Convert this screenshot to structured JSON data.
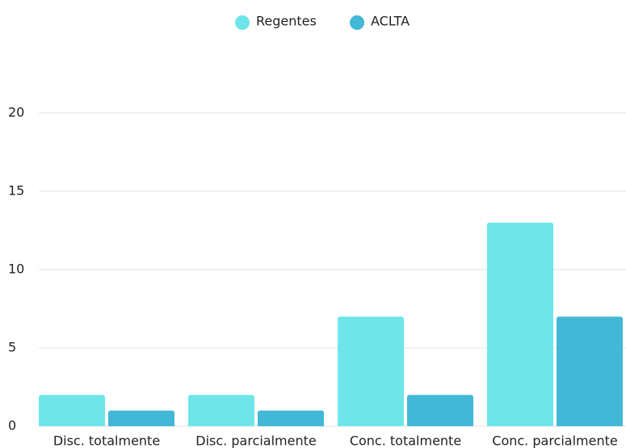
{
  "chart_data": {
    "type": "bar",
    "categories": [
      "Disc. totalmente",
      "Disc. parcialmente",
      "Conc. totalmente",
      "Conc. parcialmente"
    ],
    "series": [
      {
        "name": "Regentes",
        "color": "#6ee6e9",
        "values": [
          2,
          2,
          7,
          13
        ]
      },
      {
        "name": "ACLTA",
        "color": "#42b8d6",
        "values": [
          1,
          1,
          2,
          7
        ]
      }
    ],
    "ylim": [
      0,
      20
    ],
    "yticks": [
      0,
      5,
      10,
      15,
      20
    ],
    "grid": true,
    "legend": "top"
  }
}
